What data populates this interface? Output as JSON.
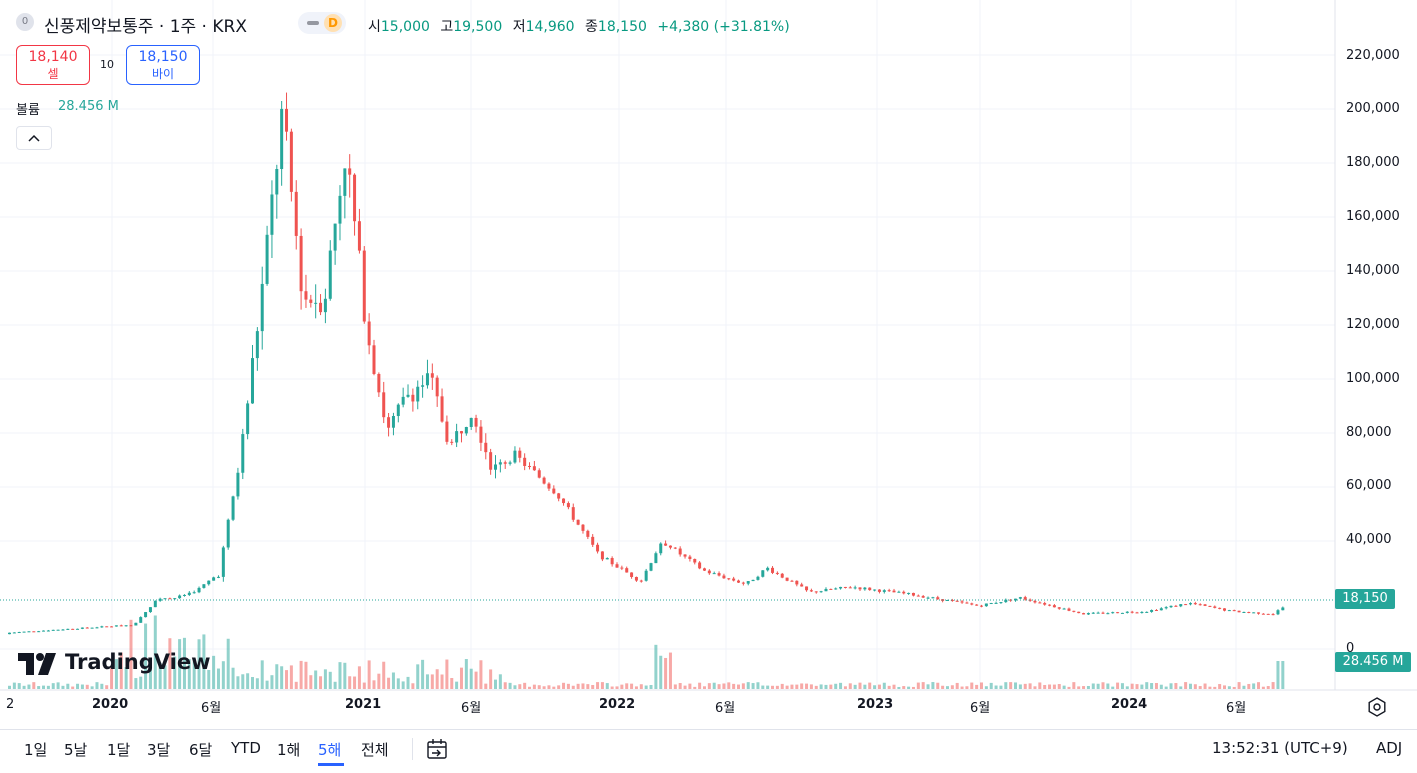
{
  "header": {
    "symbol_icon": "0",
    "title": "신풍제약보통주 · 1주 · KRX",
    "data_status": "D",
    "ohlc": {
      "open_label": "시",
      "open": "15,000",
      "high_label": "고",
      "high": "19,500",
      "low_label": "저",
      "low": "14,960",
      "close_label": "종",
      "close": "18,150",
      "change": "+4,380 (+31.81%)"
    }
  },
  "trade": {
    "sell_price": "18,140",
    "sell_label": "셀",
    "spread": "10",
    "buy_price": "18,150",
    "buy_label": "바이"
  },
  "volume": {
    "label": "볼륨",
    "value": "28.456 M",
    "collapse_icon": "chevron-up-icon"
  },
  "logo": {
    "text": "TradingView"
  },
  "price_axis": [
    "220,000",
    "200,000",
    "180,000",
    "160,000",
    "140,000",
    "120,000",
    "100,000",
    "80,000",
    "60,000",
    "40,000",
    "0"
  ],
  "price_tag": "18,150",
  "volume_tag": "28.456 M",
  "time_axis": [
    {
      "label": "2",
      "year": false
    },
    {
      "label": "2020",
      "year": true
    },
    {
      "label": "6월",
      "year": false
    },
    {
      "label": "2021",
      "year": true
    },
    {
      "label": "6월",
      "year": false
    },
    {
      "label": "2022",
      "year": true
    },
    {
      "label": "6월",
      "year": false
    },
    {
      "label": "2023",
      "year": true
    },
    {
      "label": "6월",
      "year": false
    },
    {
      "label": "2024",
      "year": true
    },
    {
      "label": "6월",
      "year": false
    }
  ],
  "ranges": [
    "1일",
    "5날",
    "1달",
    "3달",
    "6달",
    "YTD",
    "1해",
    "5해",
    "전체"
  ],
  "active_range": "5해",
  "clock": "13:52:31 (UTC+9)",
  "adj": "ADJ",
  "colors": {
    "up": "#26a69a",
    "down": "#ef5350",
    "accent": "#2962ff"
  },
  "chart_data": {
    "type": "candlestick",
    "y_axis": {
      "min": 0,
      "max": 220000,
      "ticks": [
        0,
        40000,
        60000,
        80000,
        100000,
        120000,
        140000,
        160000,
        180000,
        200000,
        220000
      ]
    },
    "last_price": 18150,
    "weekly_close_approx": [
      {
        "date": "2019-08",
        "close": 6000
      },
      {
        "date": "2019-11",
        "close": 7500
      },
      {
        "date": "2020-01",
        "close": 8500
      },
      {
        "date": "2020-02",
        "close": 9000
      },
      {
        "date": "2020-03",
        "close": 18000
      },
      {
        "date": "2020-04",
        "close": 19000
      },
      {
        "date": "2020-05",
        "close": 22000
      },
      {
        "date": "2020-06",
        "close": 28000
      },
      {
        "date": "2020-07",
        "close": 70000
      },
      {
        "date": "2020-08",
        "close": 130000
      },
      {
        "date": "2020-09",
        "close": 198000
      },
      {
        "date": "2020-10",
        "close": 130000
      },
      {
        "date": "2020-11",
        "close": 130000
      },
      {
        "date": "2020-12",
        "close": 185000
      },
      {
        "date": "2021-01",
        "close": 120000
      },
      {
        "date": "2021-02",
        "close": 80000
      },
      {
        "date": "2021-03",
        "close": 95000
      },
      {
        "date": "2021-04",
        "close": 100000
      },
      {
        "date": "2021-05",
        "close": 75000
      },
      {
        "date": "2021-06",
        "close": 90000
      },
      {
        "date": "2021-07",
        "close": 66000
      },
      {
        "date": "2021-08",
        "close": 72000
      },
      {
        "date": "2021-09",
        "close": 65000
      },
      {
        "date": "2021-10",
        "close": 58000
      },
      {
        "date": "2021-12",
        "close": 35000
      },
      {
        "date": "2022-02",
        "close": 25000
      },
      {
        "date": "2022-03",
        "close": 40000
      },
      {
        "date": "2022-05",
        "close": 29000
      },
      {
        "date": "2022-07",
        "close": 24000
      },
      {
        "date": "2022-08",
        "close": 30000
      },
      {
        "date": "2022-10",
        "close": 21000
      },
      {
        "date": "2022-12",
        "close": 23000
      },
      {
        "date": "2023-03",
        "close": 20000
      },
      {
        "date": "2023-06",
        "close": 16000
      },
      {
        "date": "2023-08",
        "close": 19000
      },
      {
        "date": "2023-11",
        "close": 13000
      },
      {
        "date": "2024-02",
        "close": 14000
      },
      {
        "date": "2024-04",
        "close": 17000
      },
      {
        "date": "2024-06",
        "close": 14000
      },
      {
        "date": "2024-08",
        "close": 13000
      },
      {
        "date": "2024-09",
        "close": 18150
      }
    ]
  }
}
